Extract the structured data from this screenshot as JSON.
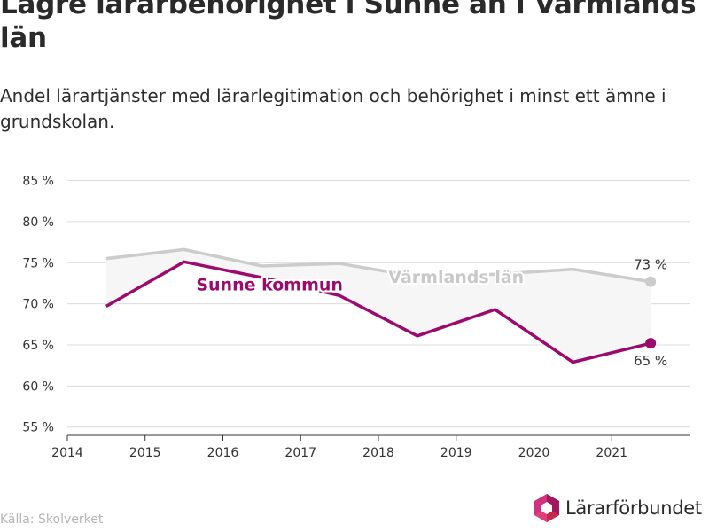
{
  "title": "Lägre lärarbehörighet i Sunne än i Värmlands län",
  "subtitle": "Andel lärartjänster med lärarlegitimation och behörighet i minst ett ämne i grundskolan.",
  "source": "Källa: Skolverket",
  "logo_text": "Lärarförbundet",
  "chart_data": {
    "type": "line",
    "x_ticks": [
      2014,
      2015,
      2016,
      2017,
      2018,
      2019,
      2020,
      2021
    ],
    "y_ticks": [
      55,
      60,
      65,
      70,
      75,
      80,
      85
    ],
    "y_tick_labels": [
      "55 %",
      "60 %",
      "65 %",
      "70 %",
      "75 %",
      "80 %",
      "85 %"
    ],
    "xlim": [
      2014,
      2022
    ],
    "ylim": [
      54,
      87
    ],
    "grid": true,
    "x": [
      2014.5,
      2015.5,
      2016.5,
      2017.5,
      2018.5,
      2019.5,
      2020.5,
      2021.5
    ],
    "series": [
      {
        "name": "Värmlands län",
        "values": [
          75.5,
          76.6,
          74.6,
          74.9,
          73.3,
          73.6,
          74.2,
          72.7
        ],
        "color": "#cccccc",
        "end_label": "73 %"
      },
      {
        "name": "Sunne kommun",
        "values": [
          69.7,
          75.1,
          73.2,
          71.0,
          66.1,
          69.3,
          62.9,
          65.2
        ],
        "color": "#9c0a6e",
        "end_label": "65 %"
      }
    ]
  }
}
